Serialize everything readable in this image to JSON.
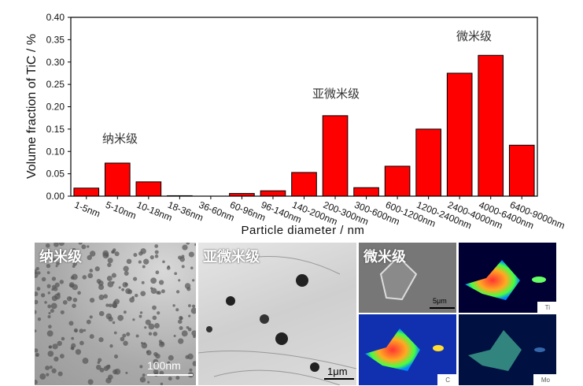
{
  "chart_data": {
    "type": "bar",
    "ylabel": "Volume fraction of TiC / %",
    "xlabel": "Particle diameter / nm",
    "ylim": [
      0,
      0.4
    ],
    "yticks": [
      "0.00",
      "0.05",
      "0.10",
      "0.15",
      "0.20",
      "0.25",
      "0.30",
      "0.35",
      "0.40"
    ],
    "categories": [
      "1-5nm",
      "5-10nm",
      "10-18nm",
      "18-36nm",
      "36-60nm",
      "60-96nm",
      "96-140nm",
      "140-200nm",
      "200-300nm",
      "300-600nm",
      "600-1200nm",
      "1200-2400nm",
      "2400-4000nm",
      "4000-6400nm",
      "6400-9000nm"
    ],
    "values": [
      0.018,
      0.074,
      0.032,
      0.001,
      0.0,
      0.006,
      0.012,
      0.053,
      0.18,
      0.019,
      0.067,
      0.15,
      0.275,
      0.315,
      0.114
    ],
    "bar_color": "#ff0000",
    "annotations": [
      "纳米级",
      "亚微米级",
      "微米级"
    ],
    "grid": false
  },
  "images": {
    "nano": {
      "label": "纳米级",
      "scale": "100nm"
    },
    "submicro": {
      "label": "亚微米级",
      "scale": "1μm"
    },
    "micro": {
      "label": "微米级",
      "scale": "5μm"
    },
    "eds": [
      "Ti",
      "C",
      "Mo"
    ]
  }
}
